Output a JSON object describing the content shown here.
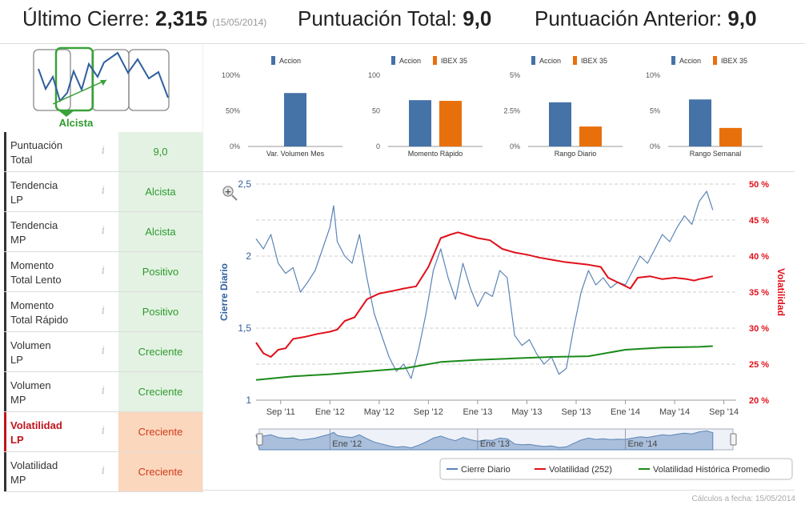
{
  "header": {
    "last_close_label": "Último Cierre:",
    "last_close_value": "2,315",
    "last_close_date": "(15/05/2014)",
    "total_score_label": "Puntuación Total:",
    "total_score_value": "9,0",
    "prev_score_label": "Puntuación Anterior:",
    "prev_score_value": "9,0"
  },
  "trend_widget": {
    "selected_label": "Alcista",
    "colors": {
      "line": "#2f5f9e",
      "selected": "#3aa23a",
      "frame": "#888888"
    }
  },
  "indicators": [
    {
      "label1": "Puntuación",
      "label2": "Total",
      "value": "9,0",
      "info": "i",
      "status": "green"
    },
    {
      "label1": "Tendencia",
      "label2": "LP",
      "value": "Alcista",
      "info": "i",
      "status": "green"
    },
    {
      "label1": "Tendencia",
      "label2": "MP",
      "value": "Alcista",
      "info": "i",
      "status": "green"
    },
    {
      "label1": "Momento",
      "label2": "Total Lento",
      "value": "Positivo",
      "info": "i",
      "status": "green"
    },
    {
      "label1": "Momento",
      "label2": "Total Rápido",
      "value": "Positivo",
      "info": "i",
      "status": "green"
    },
    {
      "label1": "Volumen",
      "label2": "LP",
      "value": "Creciente",
      "info": "i",
      "status": "green"
    },
    {
      "label1": "Volumen",
      "label2": "MP",
      "value": "Creciente",
      "info": "i",
      "status": "green"
    },
    {
      "label1": "Volatilidad",
      "label2": "LP",
      "value": "Creciente",
      "info": "i",
      "status": "orange",
      "highlight": true
    },
    {
      "label1": "Volatilidad",
      "label2": "MP",
      "value": "Creciente",
      "info": "i",
      "status": "orange"
    }
  ],
  "mini_charts": [
    {
      "title": "Var. Volumen Mes",
      "legend": [
        "Accion"
      ],
      "y_ticks": [
        "100%",
        "50%",
        "0%"
      ],
      "ylim": [
        0,
        100
      ],
      "values": [
        75
      ]
    },
    {
      "title": "Momento Rápido",
      "legend": [
        "Accion",
        "IBEX 35"
      ],
      "y_ticks": [
        "100",
        "50",
        "0"
      ],
      "ylim": [
        0,
        100
      ],
      "values": [
        65,
        64
      ]
    },
    {
      "title": "Rango Diario",
      "legend": [
        "Accion",
        "IBEX 35"
      ],
      "y_ticks": [
        "5%",
        "2.5%",
        "0%"
      ],
      "ylim": [
        0,
        5
      ],
      "values": [
        3.1,
        1.4
      ]
    },
    {
      "title": "Rango Semanal",
      "legend": [
        "Accion",
        "IBEX 35"
      ],
      "y_ticks": [
        "10%",
        "5%",
        "0%"
      ],
      "ylim": [
        0,
        10
      ],
      "values": [
        6.6,
        2.6
      ]
    }
  ],
  "colors": {
    "accion": "#4572a7",
    "ibex": "#e8700c",
    "price": "#5b84b6",
    "vol": "#e0101a",
    "avg": "#1a8a1a",
    "grid": "#cccccc"
  },
  "chart_data": {
    "type": "line",
    "title": "",
    "ylabel_left": "Cierre Diario",
    "ylabel_right": "Volatilidad",
    "y_left_ticks": [
      "2,5",
      "2",
      "1,5",
      "1"
    ],
    "y_left_range": [
      1,
      2.5
    ],
    "y_right_ticks": [
      "50 %",
      "45 %",
      "40 %",
      "35 %",
      "30 %",
      "25 %",
      "20 %"
    ],
    "y_right_range": [
      20,
      50
    ],
    "x_ticks": [
      "Sep '11",
      "Ene '12",
      "May '12",
      "Sep '12",
      "Ene '13",
      "May '13",
      "Sep '13",
      "Ene '14",
      "May '14",
      "Sep '14"
    ],
    "x_range_months": [
      0,
      39
    ],
    "navigator_labels": [
      "Ene '12",
      "Ene '13",
      "Ene '14"
    ],
    "series": [
      {
        "name": "Cierre Diario",
        "axis": "left",
        "x": [
          0,
          0.6,
          1.2,
          1.8,
          2.4,
          3,
          3.6,
          4.2,
          4.8,
          5.4,
          6,
          6.3,
          6.6,
          7.2,
          7.8,
          8.4,
          9,
          9.6,
          10.2,
          10.8,
          11.4,
          12,
          12.6,
          13.2,
          13.8,
          14.4,
          15,
          15.6,
          16.2,
          16.8,
          17.4,
          18,
          18.6,
          19.2,
          19.8,
          20.4,
          21,
          21.6,
          22.2,
          22.8,
          23.4,
          24,
          24.6,
          25.2,
          25.8,
          26.4,
          27,
          27.6,
          28.2,
          28.8,
          29.4,
          30,
          30.6,
          31.2,
          31.8,
          32.4,
          33,
          33.6,
          34.2,
          34.8,
          35.4,
          36,
          36.6,
          37.1
        ],
        "y": [
          2.12,
          2.05,
          2.15,
          1.95,
          1.88,
          1.92,
          1.75,
          1.82,
          1.9,
          2.05,
          2.2,
          2.35,
          2.1,
          2.0,
          1.95,
          2.15,
          1.85,
          1.6,
          1.45,
          1.3,
          1.2,
          1.25,
          1.15,
          1.35,
          1.6,
          1.9,
          2.05,
          1.85,
          1.7,
          1.95,
          1.78,
          1.65,
          1.75,
          1.72,
          1.9,
          1.85,
          1.45,
          1.38,
          1.42,
          1.32,
          1.25,
          1.3,
          1.18,
          1.22,
          1.5,
          1.75,
          1.9,
          1.8,
          1.85,
          1.78,
          1.82,
          1.8,
          1.9,
          2.0,
          1.95,
          2.05,
          2.15,
          2.1,
          2.2,
          2.28,
          2.22,
          2.38,
          2.45,
          2.32
        ]
      },
      {
        "name": "Volatilidad (252)",
        "axis": "right",
        "x": [
          0,
          0.6,
          1.2,
          1.8,
          2.4,
          3,
          4,
          5,
          6,
          6.6,
          7.2,
          8,
          9,
          10,
          10.6,
          11.2,
          12,
          13,
          14,
          15,
          15.8,
          16.4,
          17,
          18,
          19,
          20,
          21,
          22,
          23,
          24,
          25,
          26,
          27,
          28,
          28.6,
          29.2,
          29.8,
          30.4,
          31,
          32,
          33,
          34,
          35,
          35.6,
          36,
          36.6,
          37.1
        ],
        "y": [
          28,
          26.5,
          26,
          27,
          27.2,
          28.5,
          28.8,
          29.2,
          29.5,
          29.8,
          31,
          31.5,
          34,
          34.8,
          35,
          35.2,
          35.5,
          35.8,
          38.5,
          42.5,
          43,
          43.3,
          43,
          42.5,
          42.2,
          41,
          40.5,
          40.2,
          39.8,
          39.5,
          39.2,
          39,
          38.8,
          38.5,
          37,
          36.5,
          36,
          35.5,
          37,
          37.2,
          36.8,
          37,
          36.8,
          36.6,
          36.8,
          37,
          37.2
        ]
      },
      {
        "name": "Volatilidad Histórica Promedio",
        "axis": "right",
        "x": [
          0,
          3,
          6,
          9,
          12,
          15,
          18,
          21,
          24,
          27,
          30,
          33,
          36,
          37.1
        ],
        "y": [
          22.8,
          23.3,
          23.6,
          24,
          24.4,
          25.3,
          25.6,
          25.8,
          26,
          26.1,
          27,
          27.3,
          27.4,
          27.5
        ]
      }
    ],
    "legend": [
      "Cierre Diario",
      "Volatilidad (252)",
      "Volatilidad Histórica Promedio"
    ]
  },
  "footer": {
    "calc_date": "Cálculos a fecha: 15/05/2014"
  }
}
